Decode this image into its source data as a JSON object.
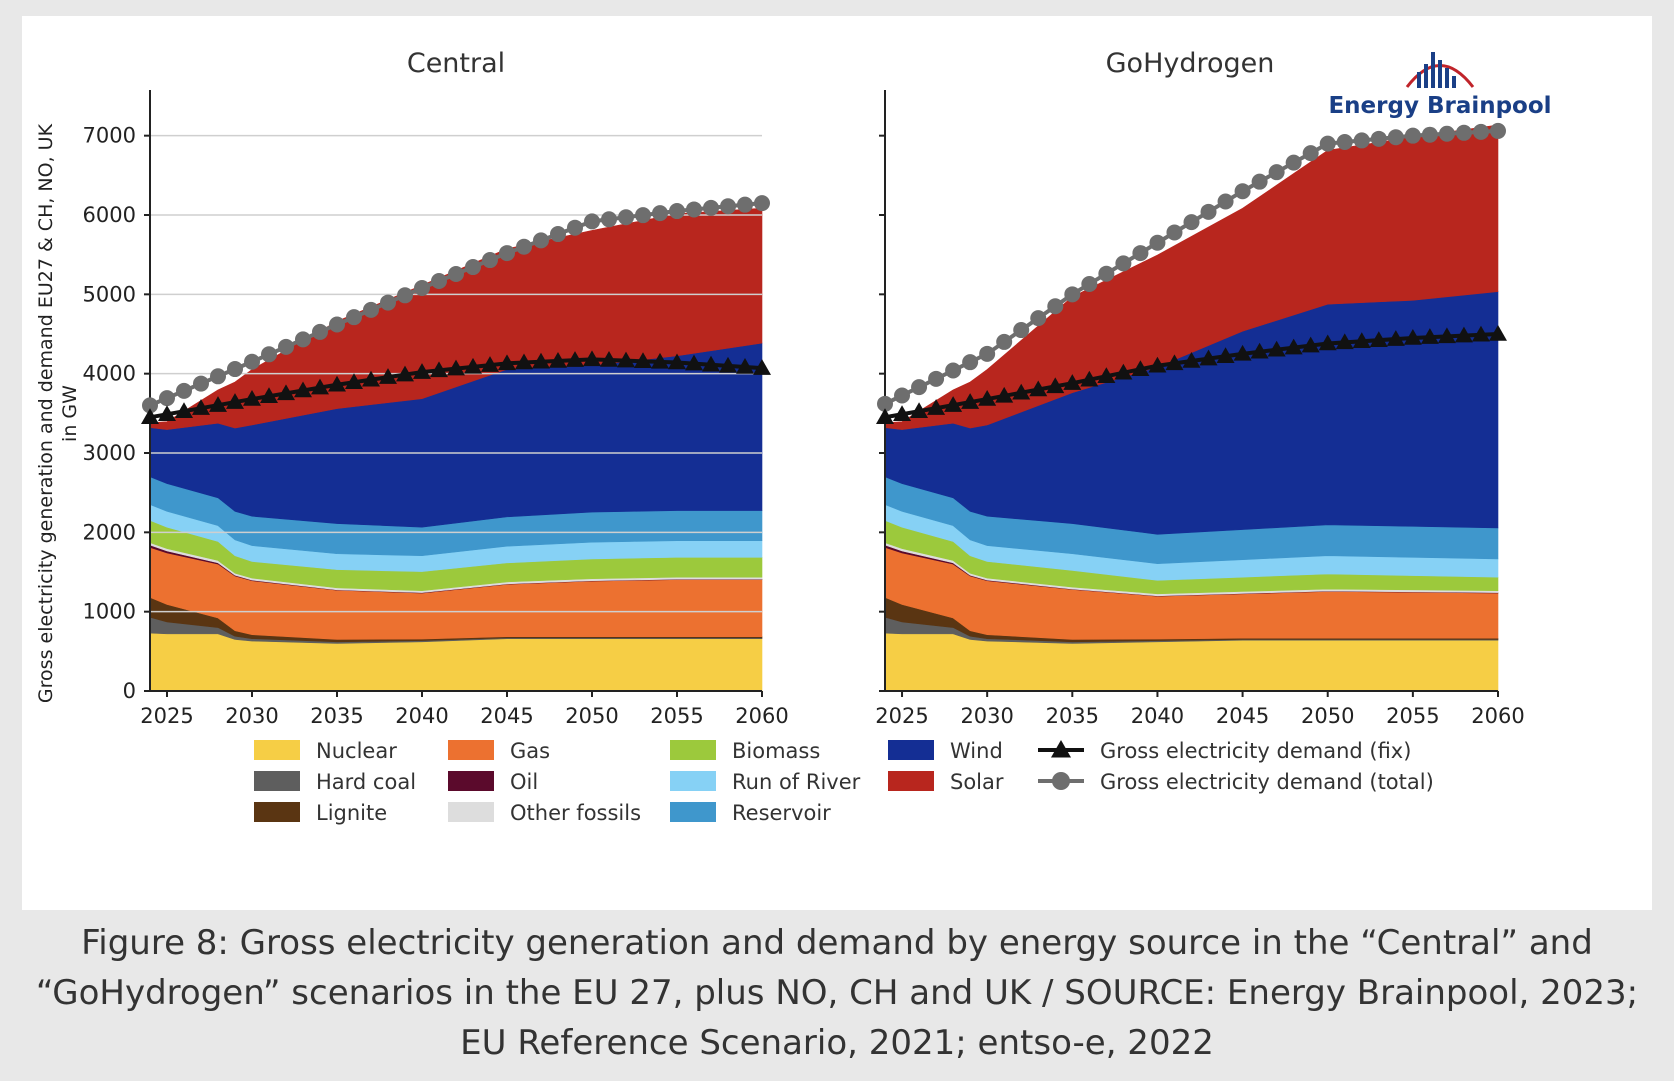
{
  "caption": {
    "line1": "Figure 8: Gross electricity generation and demand by energy source in the “Central” and",
    "line2": "“GoHydrogen” scenarios in the EU 27, plus NO, CH and UK / SOURCE: Energy Brainpool, 2023;",
    "line3": "EU Reference Scenario, 2021; entso-e, 2022"
  },
  "logo": {
    "text": "Energy Brainpool"
  },
  "colors": {
    "Nuclear": "#f6ce45",
    "Hard coal": "#5e5e5e",
    "Lignite": "#5a3512",
    "Gas": "#ec7130",
    "Oil": "#5b0a2c",
    "Other fossils": "#dddddd",
    "Biomass": "#9cc93c",
    "Run of River": "#86d1f5",
    "Reservoir": "#3f97cc",
    "Wind": "#142e94",
    "Solar": "#b8261e",
    "demand_fix": "#111111",
    "demand_total": "#6e6e6e"
  },
  "chart_data": [
    {
      "type": "area",
      "title": "Central",
      "ylabel": "Gross electricity generation and demand EU27 & CH, NO, UK in GW",
      "ylabel_lines": [
        "Gross electricity generation and demand EU27 & CH, NO, UK",
        "in GW"
      ],
      "xlabel": "",
      "xlim": [
        2024,
        2060
      ],
      "ylim": [
        0,
        7500
      ],
      "x_ticks": [
        2025,
        2030,
        2035,
        2040,
        2045,
        2050,
        2055,
        2060
      ],
      "y_ticks": [
        0,
        1000,
        2000,
        3000,
        4000,
        5000,
        6000,
        7000
      ],
      "grid": "horizontal",
      "stacked": true,
      "x": [
        2024,
        2025,
        2028,
        2029,
        2030,
        2035,
        2040,
        2045,
        2050,
        2055,
        2060
      ],
      "series": [
        {
          "name": "Nuclear",
          "values": [
            730,
            720,
            720,
            650,
            630,
            600,
            620,
            660,
            660,
            660,
            660
          ]
        },
        {
          "name": "Hard coal",
          "values": [
            200,
            150,
            80,
            40,
            30,
            20,
            15,
            10,
            10,
            10,
            10
          ]
        },
        {
          "name": "Lignite",
          "values": [
            250,
            220,
            120,
            70,
            50,
            30,
            20,
            15,
            15,
            15,
            15
          ]
        },
        {
          "name": "Gas",
          "values": [
            630,
            650,
            680,
            690,
            680,
            620,
            580,
            660,
            700,
            720,
            720
          ]
        },
        {
          "name": "Oil",
          "values": [
            30,
            25,
            15,
            10,
            8,
            5,
            5,
            5,
            5,
            5,
            5
          ]
        },
        {
          "name": "Other fossils",
          "values": [
            30,
            30,
            30,
            25,
            25,
            25,
            25,
            25,
            25,
            25,
            25
          ]
        },
        {
          "name": "Biomass",
          "values": [
            280,
            270,
            240,
            220,
            210,
            230,
            240,
            240,
            250,
            250,
            250
          ]
        },
        {
          "name": "Run of River",
          "values": [
            200,
            200,
            200,
            200,
            200,
            200,
            200,
            210,
            210,
            210,
            210
          ]
        },
        {
          "name": "Reservoir",
          "values": [
            350,
            350,
            350,
            360,
            370,
            380,
            360,
            370,
            380,
            380,
            380
          ]
        },
        {
          "name": "Wind",
          "values": [
            620,
            680,
            940,
            1050,
            1150,
            1450,
            1620,
            1860,
            1850,
            1950,
            2110
          ]
        },
        {
          "name": "Solar",
          "values": [
            60,
            100,
            420,
            580,
            700,
            1100,
            1430,
            1520,
            1700,
            1790,
            1700
          ]
        }
      ],
      "demand_fix": {
        "name": "Gross electricity demand (fix)",
        "x": [
          2024,
          2030,
          2035,
          2040,
          2045,
          2050,
          2055,
          2060
        ],
        "values": [
          3450,
          3680,
          3860,
          4020,
          4130,
          4180,
          4140,
          4070
        ]
      },
      "demand_total": {
        "name": "Gross electricity demand (total)",
        "x": [
          2024,
          2030,
          2035,
          2040,
          2045,
          2050,
          2055,
          2060
        ],
        "values": [
          3600,
          4150,
          4620,
          5080,
          5520,
          5920,
          6050,
          6150
        ]
      }
    },
    {
      "type": "area",
      "title": "GoHydrogen",
      "ylabel": "",
      "xlabel": "",
      "xlim": [
        2024,
        2060
      ],
      "ylim": [
        0,
        7500
      ],
      "x_ticks": [
        2025,
        2030,
        2035,
        2040,
        2045,
        2050,
        2055,
        2060
      ],
      "y_ticks": [
        0,
        1000,
        2000,
        3000,
        4000,
        5000,
        6000,
        7000
      ],
      "grid": "none",
      "stacked": true,
      "x": [
        2024,
        2025,
        2028,
        2029,
        2030,
        2035,
        2040,
        2045,
        2050,
        2055,
        2060
      ],
      "series": [
        {
          "name": "Nuclear",
          "values": [
            730,
            720,
            720,
            650,
            630,
            600,
            620,
            640,
            640,
            640,
            640
          ]
        },
        {
          "name": "Hard coal",
          "values": [
            200,
            150,
            80,
            40,
            30,
            20,
            15,
            10,
            10,
            10,
            10
          ]
        },
        {
          "name": "Lignite",
          "values": [
            250,
            220,
            120,
            70,
            50,
            30,
            20,
            15,
            15,
            15,
            15
          ]
        },
        {
          "name": "Gas",
          "values": [
            630,
            650,
            680,
            690,
            680,
            630,
            540,
            560,
            590,
            580,
            570
          ]
        },
        {
          "name": "Oil",
          "values": [
            30,
            25,
            15,
            10,
            8,
            5,
            5,
            5,
            5,
            5,
            5
          ]
        },
        {
          "name": "Other fossils",
          "values": [
            30,
            30,
            30,
            25,
            25,
            25,
            25,
            25,
            25,
            25,
            25
          ]
        },
        {
          "name": "Biomass",
          "values": [
            280,
            270,
            240,
            220,
            210,
            210,
            170,
            180,
            190,
            180,
            170
          ]
        },
        {
          "name": "Run of River",
          "values": [
            200,
            200,
            200,
            200,
            200,
            210,
            210,
            220,
            230,
            230,
            230
          ]
        },
        {
          "name": "Reservoir",
          "values": [
            350,
            350,
            350,
            360,
            370,
            380,
            370,
            380,
            390,
            390,
            390
          ]
        },
        {
          "name": "Wind",
          "values": [
            620,
            680,
            940,
            1050,
            1150,
            1650,
            2110,
            2500,
            2780,
            2850,
            2980
          ]
        },
        {
          "name": "Solar",
          "values": [
            60,
            100,
            420,
            580,
            700,
            1210,
            1410,
            1550,
            1940,
            2060,
            2100
          ]
        }
      ],
      "demand_fix": {
        "name": "Gross electricity demand (fix)",
        "x": [
          2024,
          2030,
          2035,
          2040,
          2045,
          2050,
          2055,
          2060
        ],
        "values": [
          3450,
          3680,
          3880,
          4100,
          4250,
          4380,
          4450,
          4500
        ]
      },
      "demand_total": {
        "name": "Gross electricity demand (total)",
        "x": [
          2024,
          2030,
          2035,
          2040,
          2045,
          2050,
          2055,
          2060
        ],
        "values": [
          3620,
          4250,
          5000,
          5650,
          6300,
          6900,
          7000,
          7060
        ]
      }
    }
  ],
  "legend": [
    {
      "label": "Nuclear",
      "kind": "area"
    },
    {
      "label": "Hard coal",
      "kind": "area"
    },
    {
      "label": "Lignite",
      "kind": "area"
    },
    {
      "label": "Gas",
      "kind": "area"
    },
    {
      "label": "Oil",
      "kind": "area"
    },
    {
      "label": "Other fossils",
      "kind": "area"
    },
    {
      "label": "Biomass",
      "kind": "area"
    },
    {
      "label": "Run of River",
      "kind": "area"
    },
    {
      "label": "Reservoir",
      "kind": "area"
    },
    {
      "label": "Wind",
      "kind": "area"
    },
    {
      "label": "Solar",
      "kind": "area"
    },
    {
      "label": "Gross electricity demand (fix)",
      "kind": "triangle-line"
    },
    {
      "label": "Gross electricity demand (total)",
      "kind": "circle-line"
    }
  ]
}
